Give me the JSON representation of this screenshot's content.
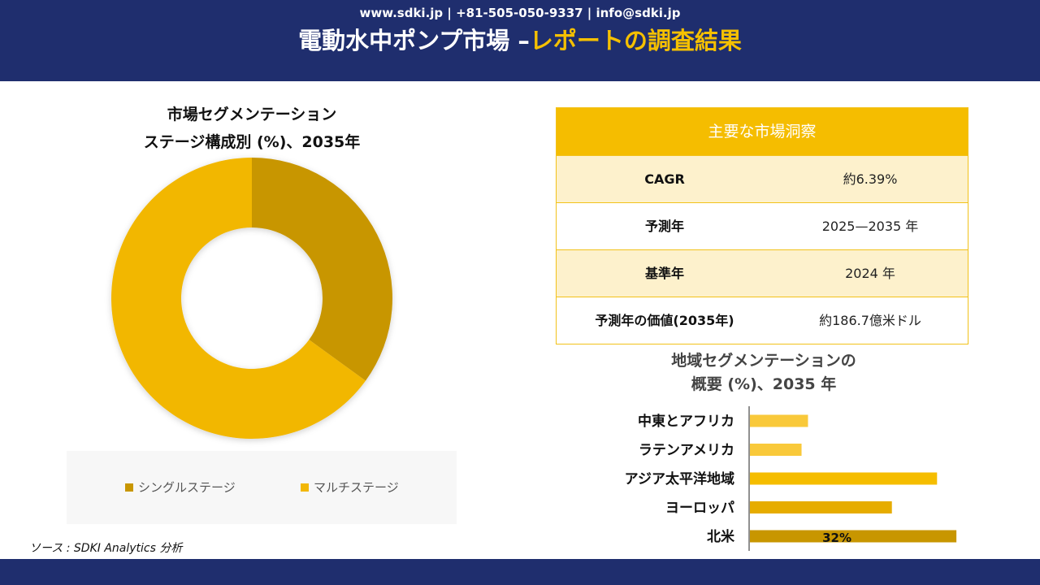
{
  "header": {
    "title_main": "電動水中ポンプ市場 –",
    "title_accent": "レポートの調査結果"
  },
  "donut": {
    "title_line1": "市場セグメンテーション",
    "title_line2": "ステージ構成別 (%)、2035年"
  },
  "insights": {
    "heading": "主要な市場洞察",
    "rows": [
      {
        "key": "CAGR",
        "value": "約6.39%"
      },
      {
        "key": "予測年",
        "value": "2025—2035 年"
      },
      {
        "key": "基準年",
        "value": "2024 年"
      },
      {
        "key": "予測年の価値(2035年)",
        "value": "約186.7億米ドル"
      }
    ]
  },
  "bar": {
    "title_line1": "地域セグメンテーションの",
    "title_line2": "概要 (%)、2035 年"
  },
  "source": "ソース : SDKI Analytics 分析",
  "footer": "www.sdki.jp | +81-505-050-9337 | info@sdki.jp",
  "colors": {
    "navy": "#1f2e6e",
    "gold": "#f5bd00",
    "dark_gold": "#c89600"
  },
  "chart_data": [
    {
      "type": "pie",
      "categories": [
        "シングルステージ",
        "マルチステージ"
      ],
      "values": [
        35,
        65
      ],
      "colors": [
        "#c89600",
        "#f2b705"
      ],
      "legend": "bottom"
    },
    {
      "type": "bar",
      "orientation": "horizontal",
      "categories": [
        "中東とアフリカ",
        "ラテンアメリカ",
        "アジア太平洋地域",
        "ヨーロッパ",
        "北米"
      ],
      "values": [
        9,
        8,
        29,
        22,
        32
      ],
      "colors": [
        "#f9c93a",
        "#f9c93a",
        "#f5bd00",
        "#e6ac00",
        "#c89600"
      ],
      "data_labels": [
        "",
        "",
        "",
        "",
        "32%"
      ],
      "xlim": [
        0,
        34
      ]
    }
  ]
}
